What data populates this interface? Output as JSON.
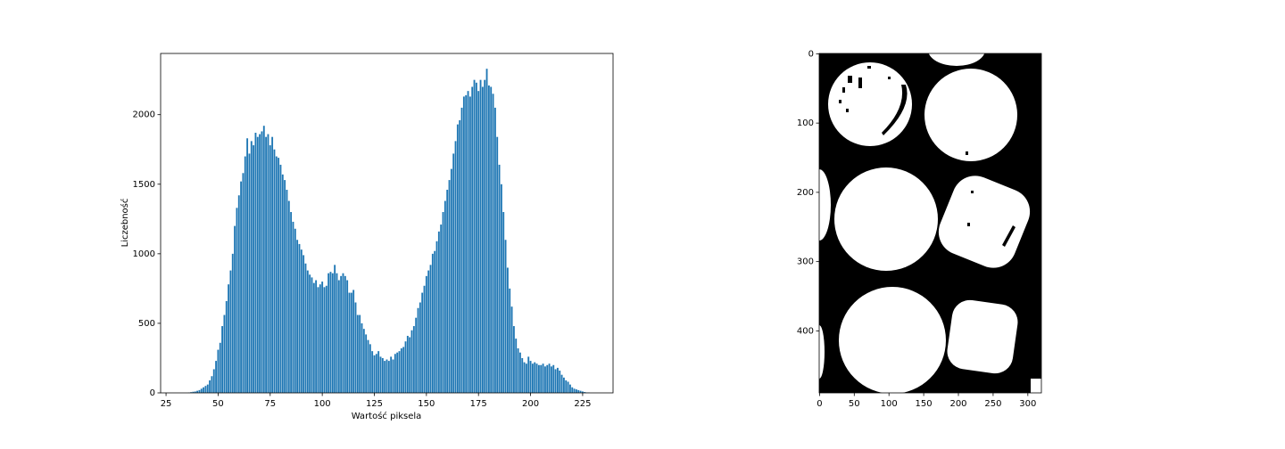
{
  "chart_data": [
    {
      "type": "bar",
      "xlabel": "Wartość piksela",
      "ylabel": "Liczebność",
      "color": "#1f77b4",
      "x": [
        36,
        37,
        38,
        39,
        40,
        41,
        42,
        43,
        44,
        45,
        46,
        47,
        48,
        49,
        50,
        51,
        52,
        53,
        54,
        55,
        56,
        57,
        58,
        59,
        60,
        61,
        62,
        63,
        64,
        65,
        66,
        67,
        68,
        69,
        70,
        71,
        72,
        73,
        74,
        75,
        76,
        77,
        78,
        79,
        80,
        81,
        82,
        83,
        84,
        85,
        86,
        87,
        88,
        89,
        90,
        91,
        92,
        93,
        94,
        95,
        96,
        97,
        98,
        99,
        100,
        101,
        102,
        103,
        104,
        105,
        106,
        107,
        108,
        109,
        110,
        111,
        112,
        113,
        114,
        115,
        116,
        117,
        118,
        119,
        120,
        121,
        122,
        123,
        124,
        125,
        126,
        127,
        128,
        129,
        130,
        131,
        132,
        133,
        134,
        135,
        136,
        137,
        138,
        139,
        140,
        141,
        142,
        143,
        144,
        145,
        146,
        147,
        148,
        149,
        150,
        151,
        152,
        153,
        154,
        155,
        156,
        157,
        158,
        159,
        160,
        161,
        162,
        163,
        164,
        165,
        166,
        167,
        168,
        169,
        170,
        171,
        172,
        173,
        174,
        175,
        176,
        177,
        178,
        179,
        180,
        181,
        182,
        183,
        184,
        185,
        186,
        187,
        188,
        189,
        190,
        191,
        192,
        193,
        194,
        195,
        196,
        197,
        198,
        199,
        200,
        201,
        202,
        203,
        204,
        205,
        206,
        207,
        208,
        209,
        210,
        211,
        212,
        213,
        214,
        215,
        216,
        217,
        218,
        219,
        220,
        221,
        222,
        223,
        224,
        225,
        226,
        227,
        228
      ],
      "values": [
        2,
        5,
        8,
        10,
        15,
        20,
        30,
        40,
        50,
        60,
        90,
        120,
        170,
        230,
        310,
        360,
        480,
        560,
        660,
        780,
        880,
        1000,
        1200,
        1330,
        1420,
        1520,
        1580,
        1700,
        1830,
        1720,
        1810,
        1780,
        1870,
        1840,
        1860,
        1880,
        1920,
        1840,
        1860,
        1780,
        1840,
        1750,
        1700,
        1690,
        1640,
        1570,
        1530,
        1460,
        1380,
        1300,
        1230,
        1180,
        1100,
        1070,
        1030,
        990,
        930,
        880,
        850,
        830,
        790,
        810,
        760,
        780,
        800,
        760,
        770,
        860,
        870,
        860,
        920,
        860,
        810,
        840,
        860,
        840,
        810,
        720,
        720,
        740,
        650,
        560,
        560,
        500,
        460,
        420,
        380,
        350,
        300,
        270,
        280,
        300,
        260,
        250,
        230,
        240,
        230,
        260,
        240,
        280,
        290,
        300,
        320,
        330,
        370,
        410,
        400,
        450,
        480,
        540,
        610,
        650,
        720,
        770,
        840,
        880,
        920,
        1000,
        1020,
        1090,
        1160,
        1210,
        1300,
        1380,
        1460,
        1530,
        1610,
        1720,
        1810,
        1930,
        1960,
        2050,
        2130,
        2140,
        2170,
        2130,
        2200,
        2250,
        2230,
        2170,
        2250,
        2200,
        2250,
        2330,
        2210,
        2200,
        2150,
        2050,
        1840,
        1640,
        1500,
        1300,
        1100,
        900,
        750,
        620,
        480,
        390,
        320,
        290,
        250,
        220,
        210,
        260,
        230,
        210,
        220,
        210,
        200,
        200,
        210,
        190,
        200,
        210,
        190,
        200,
        170,
        180,
        160,
        130,
        110,
        90,
        80,
        60,
        40,
        30,
        25,
        20,
        15,
        10,
        6,
        3,
        2
      ],
      "xlim": [
        22.4,
        239.6
      ],
      "ylim": [
        0,
        2440
      ],
      "xticks": [
        25,
        50,
        75,
        100,
        125,
        150,
        175,
        200,
        225
      ],
      "yticks": [
        0,
        500,
        1000,
        1500,
        2000
      ]
    },
    {
      "type": "image",
      "xlim": [
        -0.5,
        319.5
      ],
      "ylim": [
        489.5,
        -0.5
      ],
      "xticks": [
        0,
        50,
        100,
        150,
        200,
        250,
        300
      ],
      "yticks": [
        0,
        100,
        200,
        300,
        400
      ]
    }
  ]
}
